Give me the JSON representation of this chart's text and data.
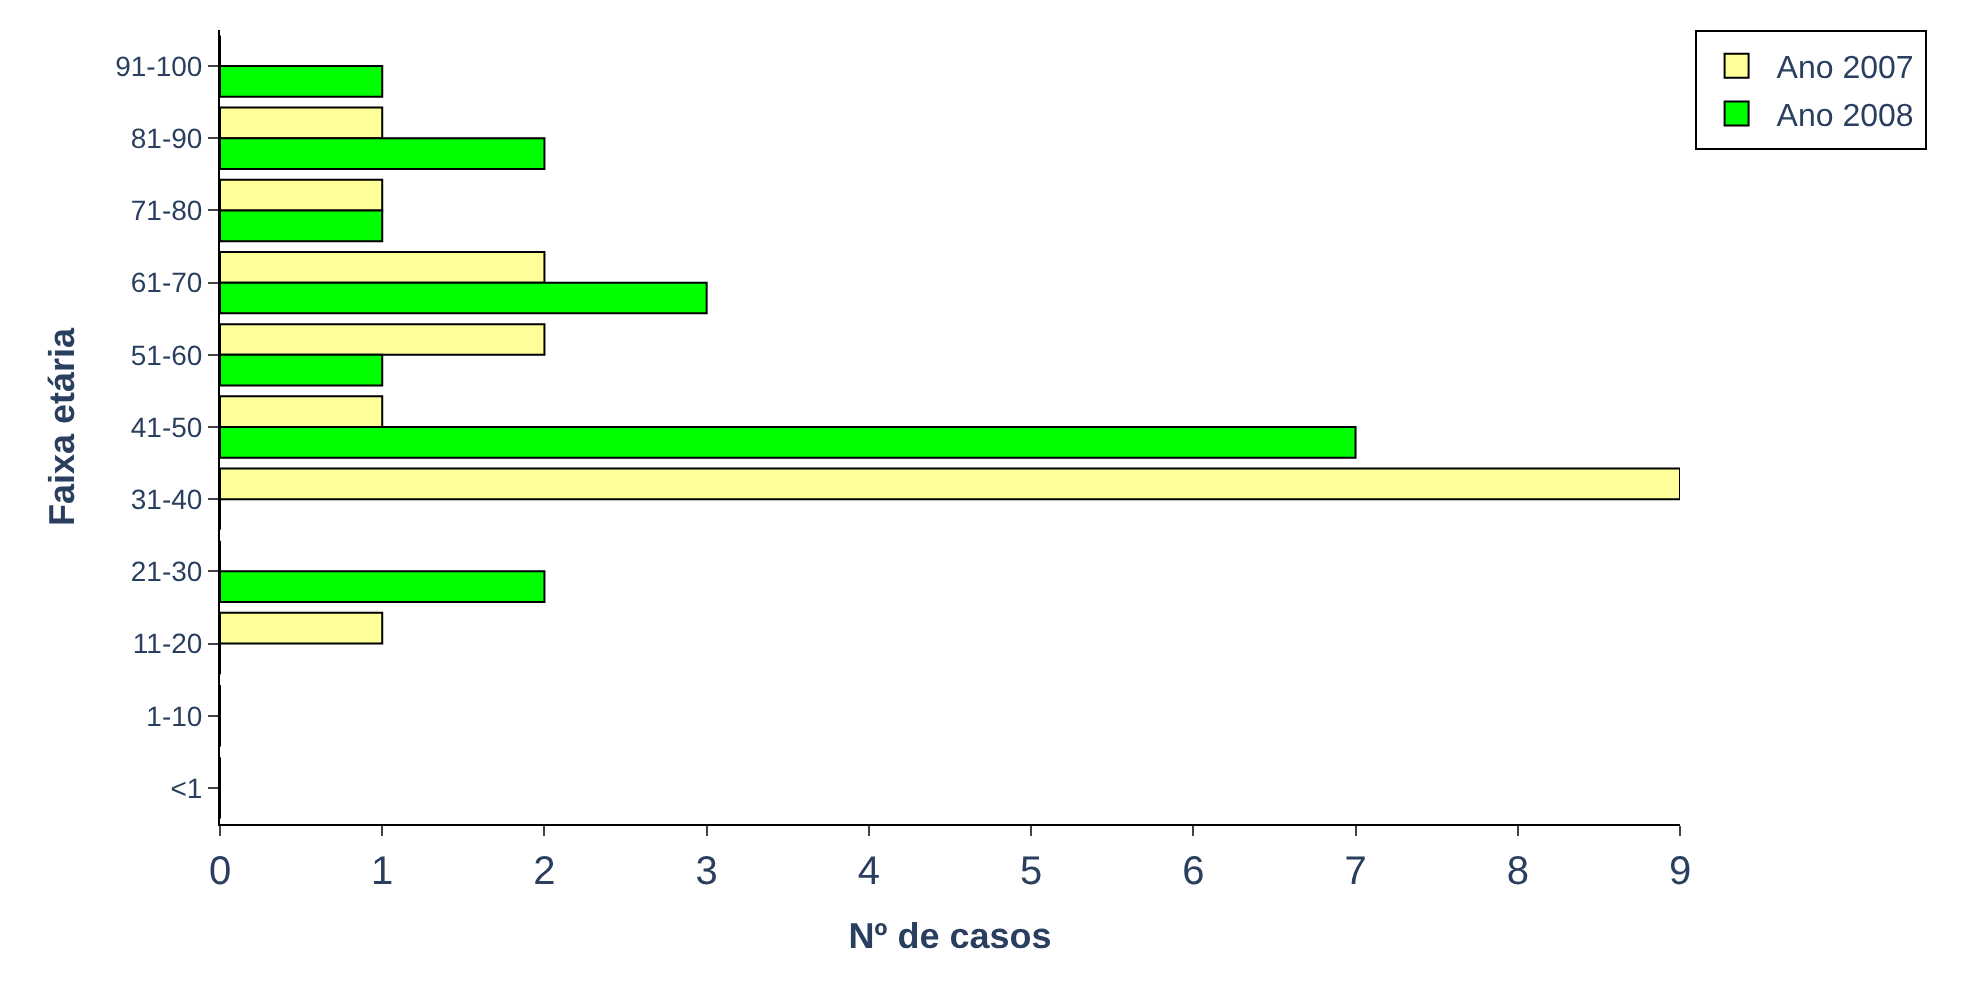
{
  "chart_data": {
    "type": "bar",
    "orientation": "horizontal",
    "xlabel": "Nº de casos",
    "ylabel": "Faixa etária",
    "categories": [
      "91-100",
      "81-90",
      "71-80",
      "61-70",
      "51-60",
      "41-50",
      "31-40",
      "21-30",
      "11-20",
      "1-10",
      "<1"
    ],
    "series": [
      {
        "name": "Ano 2007",
        "color": "#ffff99",
        "values": [
          0,
          1,
          1,
          2,
          2,
          1,
          9,
          0,
          1,
          0,
          0
        ]
      },
      {
        "name": "Ano 2008",
        "color": "#00ff00",
        "values": [
          1,
          2,
          1,
          3,
          1,
          7,
          0,
          2,
          0,
          0,
          0
        ]
      }
    ],
    "xlim": [
      0,
      9
    ],
    "xticks": [
      0,
      1,
      2,
      3,
      4,
      5,
      6,
      7,
      8,
      9
    ],
    "legend": "top right"
  }
}
